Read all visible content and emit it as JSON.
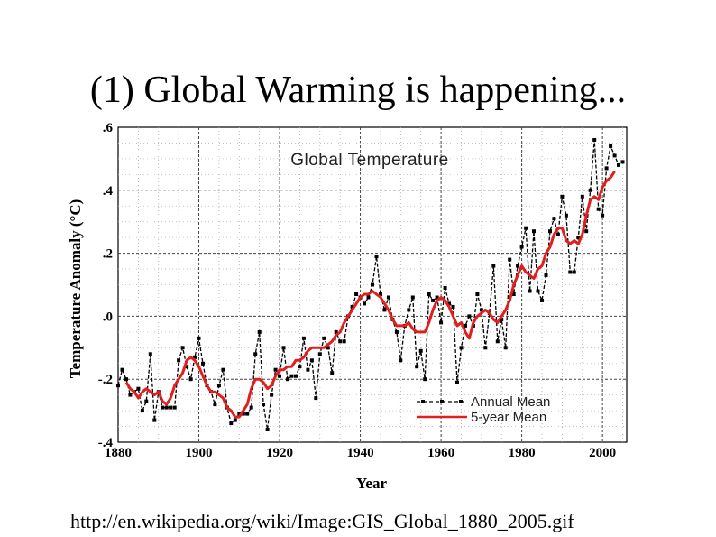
{
  "slide": {
    "title": "(1) Global Warming is happening...",
    "source_url": "http://en.wikipedia.org/wiki/Image:GIS_Global_1880_2005.gif"
  },
  "chart_data": {
    "type": "line",
    "title": "Global Temperature",
    "xlabel": "Year",
    "ylabel": "Temperature Anomaly (°C)",
    "xlim": [
      1880,
      2006
    ],
    "ylim": [
      -0.4,
      0.6
    ],
    "x_ticks": [
      1880,
      1900,
      1920,
      1940,
      1960,
      1980,
      2000
    ],
    "x_tick_labels": [
      "1880",
      "1900",
      "1920",
      "1940",
      "1960",
      "1980",
      "2000"
    ],
    "y_ticks": [
      -0.4,
      -0.2,
      0.0,
      0.2,
      0.4,
      0.6
    ],
    "y_tick_labels": [
      "-.4",
      "-.2",
      ".0",
      ".2",
      ".4",
      ".6"
    ],
    "grid": true,
    "legend_position": "bottom-right",
    "series": [
      {
        "name": "Annual Mean",
        "style": "dashed-markers",
        "color": "#000000",
        "x": [
          1880,
          1881,
          1882,
          1883,
          1884,
          1885,
          1886,
          1887,
          1888,
          1889,
          1890,
          1891,
          1892,
          1893,
          1894,
          1895,
          1896,
          1897,
          1898,
          1899,
          1900,
          1901,
          1902,
          1903,
          1904,
          1905,
          1906,
          1907,
          1908,
          1909,
          1910,
          1911,
          1912,
          1913,
          1914,
          1915,
          1916,
          1917,
          1918,
          1919,
          1920,
          1921,
          1922,
          1923,
          1924,
          1925,
          1926,
          1927,
          1928,
          1929,
          1930,
          1931,
          1932,
          1933,
          1934,
          1935,
          1936,
          1937,
          1938,
          1939,
          1940,
          1941,
          1942,
          1943,
          1944,
          1945,
          1946,
          1947,
          1948,
          1949,
          1950,
          1951,
          1952,
          1953,
          1954,
          1955,
          1956,
          1957,
          1958,
          1959,
          1960,
          1961,
          1962,
          1963,
          1964,
          1965,
          1966,
          1967,
          1968,
          1969,
          1970,
          1971,
          1972,
          1973,
          1974,
          1975,
          1976,
          1977,
          1978,
          1979,
          1980,
          1981,
          1982,
          1983,
          1984,
          1985,
          1986,
          1987,
          1988,
          1989,
          1990,
          1991,
          1992,
          1993,
          1994,
          1995,
          1996,
          1997,
          1998,
          1999,
          2000,
          2001,
          2002,
          2003,
          2004,
          2005
        ],
        "values": [
          -0.22,
          -0.17,
          -0.2,
          -0.25,
          -0.24,
          -0.23,
          -0.3,
          -0.27,
          -0.12,
          -0.33,
          -0.24,
          -0.29,
          -0.29,
          -0.29,
          -0.29,
          -0.14,
          -0.1,
          -0.16,
          -0.2,
          -0.13,
          -0.07,
          -0.15,
          -0.22,
          -0.24,
          -0.28,
          -0.22,
          -0.17,
          -0.29,
          -0.34,
          -0.33,
          -0.31,
          -0.31,
          -0.31,
          -0.29,
          -0.12,
          -0.05,
          -0.28,
          -0.36,
          -0.25,
          -0.17,
          -0.19,
          -0.1,
          -0.2,
          -0.19,
          -0.19,
          -0.16,
          -0.07,
          -0.17,
          -0.14,
          -0.26,
          -0.12,
          -0.07,
          -0.1,
          -0.18,
          -0.05,
          -0.08,
          -0.08,
          0.0,
          0.03,
          0.07,
          0.06,
          0.04,
          0.06,
          0.1,
          0.19,
          0.07,
          0.02,
          0.06,
          -0.01,
          -0.05,
          -0.14,
          -0.03,
          0.02,
          0.06,
          -0.16,
          -0.11,
          -0.2,
          0.07,
          0.05,
          0.06,
          -0.02,
          0.09,
          0.04,
          0.03,
          -0.21,
          -0.1,
          -0.03,
          0.0,
          -0.03,
          0.07,
          0.02,
          -0.1,
          0.01,
          0.16,
          -0.08,
          -0.01,
          -0.1,
          0.18,
          0.07,
          0.16,
          0.22,
          0.28,
          0.08,
          0.27,
          0.08,
          0.05,
          0.13,
          0.27,
          0.31,
          0.26,
          0.38,
          0.32,
          0.14,
          0.14,
          0.25,
          0.38,
          0.27,
          0.4,
          0.56,
          0.34,
          0.32,
          0.47,
          0.54,
          0.51,
          0.48,
          0.49
        ]
      },
      {
        "name": "5-year Mean",
        "style": "solid",
        "color": "#e31e1e",
        "x": [
          1882,
          1883,
          1884,
          1885,
          1886,
          1887,
          1888,
          1889,
          1890,
          1891,
          1892,
          1893,
          1894,
          1895,
          1896,
          1897,
          1898,
          1899,
          1900,
          1901,
          1902,
          1903,
          1904,
          1905,
          1906,
          1907,
          1908,
          1909,
          1910,
          1911,
          1912,
          1913,
          1914,
          1915,
          1916,
          1917,
          1918,
          1919,
          1920,
          1921,
          1922,
          1923,
          1924,
          1925,
          1926,
          1927,
          1928,
          1929,
          1930,
          1931,
          1932,
          1933,
          1934,
          1935,
          1936,
          1937,
          1938,
          1939,
          1940,
          1941,
          1942,
          1943,
          1944,
          1945,
          1946,
          1947,
          1948,
          1949,
          1950,
          1951,
          1952,
          1953,
          1954,
          1955,
          1956,
          1957,
          1958,
          1959,
          1960,
          1961,
          1962,
          1963,
          1964,
          1965,
          1966,
          1967,
          1968,
          1969,
          1970,
          1971,
          1972,
          1973,
          1974,
          1975,
          1976,
          1977,
          1978,
          1979,
          1980,
          1981,
          1982,
          1983,
          1984,
          1985,
          1986,
          1987,
          1988,
          1989,
          1990,
          1991,
          1992,
          1993,
          1994,
          1995,
          1996,
          1997,
          1998,
          1999,
          2000,
          2001,
          2002,
          2003
        ],
        "values": [
          -0.21,
          -0.23,
          -0.24,
          -0.26,
          -0.24,
          -0.23,
          -0.24,
          -0.25,
          -0.24,
          -0.27,
          -0.28,
          -0.26,
          -0.22,
          -0.2,
          -0.18,
          -0.14,
          -0.13,
          -0.14,
          -0.16,
          -0.19,
          -0.22,
          -0.24,
          -0.24,
          -0.25,
          -0.26,
          -0.29,
          -0.3,
          -0.32,
          -0.32,
          -0.3,
          -0.28,
          -0.23,
          -0.2,
          -0.2,
          -0.21,
          -0.23,
          -0.22,
          -0.19,
          -0.17,
          -0.17,
          -0.16,
          -0.16,
          -0.14,
          -0.14,
          -0.13,
          -0.11,
          -0.1,
          -0.1,
          -0.1,
          -0.1,
          -0.09,
          -0.08,
          -0.06,
          -0.05,
          -0.02,
          0.0,
          0.02,
          0.04,
          0.06,
          0.07,
          0.07,
          0.08,
          0.07,
          0.06,
          0.04,
          0.02,
          -0.01,
          -0.03,
          -0.03,
          -0.03,
          -0.02,
          -0.04,
          -0.05,
          -0.05,
          -0.05,
          -0.02,
          0.02,
          0.05,
          0.06,
          0.05,
          0.03,
          0.0,
          -0.03,
          -0.02,
          -0.05,
          -0.07,
          -0.02,
          0.0,
          0.01,
          0.02,
          0.01,
          -0.01,
          -0.02,
          0.0,
          0.02,
          0.05,
          0.1,
          0.13,
          0.16,
          0.14,
          0.13,
          0.12,
          0.15,
          0.16,
          0.2,
          0.22,
          0.26,
          0.28,
          0.28,
          0.24,
          0.23,
          0.24,
          0.23,
          0.26,
          0.32,
          0.37,
          0.38,
          0.37,
          0.41,
          0.43,
          0.44,
          0.46
        ]
      }
    ]
  }
}
